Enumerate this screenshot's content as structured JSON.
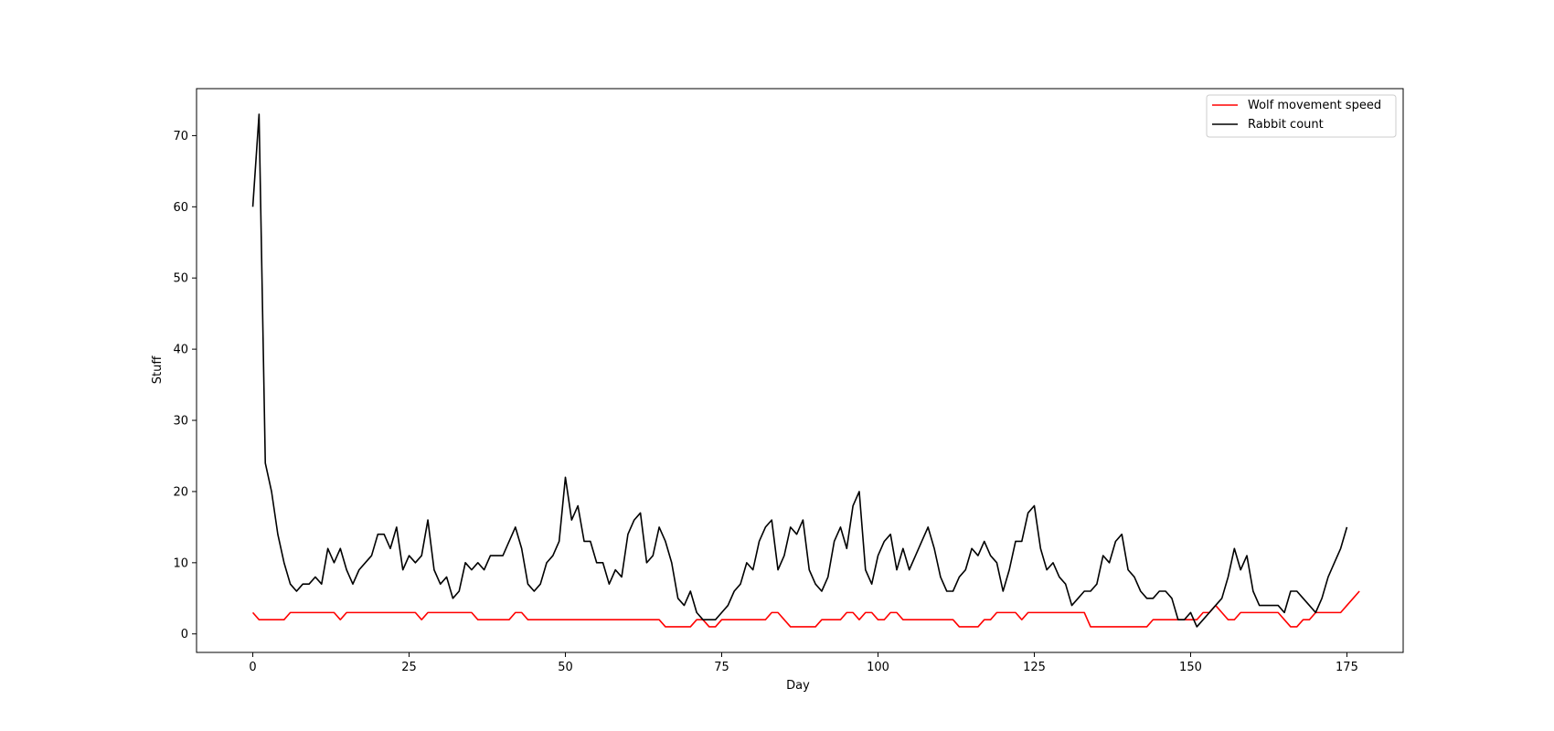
{
  "chart_data": {
    "type": "line",
    "title": "",
    "xlabel": "Day",
    "ylabel": "Stuff",
    "xlim": [
      -9,
      184
    ],
    "ylim": [
      -2.6,
      76.6
    ],
    "xticks": [
      "0",
      "25",
      "50",
      "75",
      "100",
      "125",
      "150",
      "175"
    ],
    "yticks": [
      "0",
      "10",
      "20",
      "30",
      "40",
      "50",
      "60",
      "70"
    ],
    "grid": false,
    "legend_position": "top-right",
    "series": [
      {
        "name": "Wolf movement speed",
        "color": "#ff0000",
        "values": [
          3,
          2,
          2,
          2,
          2,
          2,
          3,
          3,
          3,
          3,
          3,
          3,
          3,
          3,
          2,
          3,
          3,
          3,
          3,
          3,
          3,
          3,
          3,
          3,
          3,
          3,
          3,
          2,
          3,
          3,
          3,
          3,
          3,
          3,
          3,
          3,
          2,
          2,
          2,
          2,
          2,
          2,
          3,
          3,
          2,
          2,
          2,
          2,
          2,
          2,
          2,
          2,
          2,
          2,
          2,
          2,
          2,
          2,
          2,
          2,
          2,
          2,
          2,
          2,
          2,
          2,
          1,
          1,
          1,
          1,
          1,
          2,
          2,
          1,
          1,
          2,
          2,
          2,
          2,
          2,
          2,
          2,
          2,
          3,
          3,
          2,
          1,
          1,
          1,
          1,
          1,
          2,
          2,
          2,
          2,
          3,
          3,
          2,
          3,
          3,
          2,
          2,
          3,
          3,
          2,
          2,
          2,
          2,
          2,
          2,
          2,
          2,
          2,
          1,
          1,
          1,
          1,
          2,
          2,
          3,
          3,
          3,
          3,
          2,
          3,
          3,
          3,
          3,
          3,
          3,
          3,
          3,
          3,
          3,
          1,
          1,
          1,
          1,
          1,
          1,
          1,
          1,
          1,
          1,
          2,
          2,
          2,
          2,
          2,
          2,
          2,
          2,
          3,
          3,
          4,
          3,
          2,
          2,
          3,
          3,
          3,
          3,
          3,
          3,
          3,
          2,
          1,
          1,
          2,
          2,
          3,
          3,
          3,
          3,
          3,
          4,
          5,
          6
        ]
      },
      {
        "name": "Rabbit count",
        "color": "#000000",
        "values": [
          60,
          73,
          24,
          20,
          14,
          10,
          7,
          6,
          7,
          7,
          8,
          7,
          12,
          10,
          12,
          9,
          7,
          9,
          10,
          11,
          14,
          14,
          12,
          15,
          9,
          11,
          10,
          11,
          16,
          9,
          7,
          8,
          5,
          6,
          10,
          9,
          10,
          9,
          11,
          11,
          11,
          13,
          15,
          12,
          7,
          6,
          7,
          10,
          11,
          13,
          22,
          16,
          18,
          13,
          13,
          10,
          10,
          7,
          9,
          8,
          14,
          16,
          17,
          10,
          11,
          15,
          13,
          10,
          5,
          4,
          6,
          3,
          2,
          2,
          2,
          3,
          4,
          6,
          7,
          10,
          9,
          13,
          15,
          16,
          9,
          11,
          15,
          14,
          16,
          9,
          7,
          6,
          8,
          13,
          15,
          12,
          18,
          20,
          9,
          7,
          11,
          13,
          14,
          9,
          12,
          9,
          11,
          13,
          15,
          12,
          8,
          6,
          6,
          8,
          9,
          12,
          11,
          13,
          11,
          10,
          6,
          9,
          13,
          13,
          17,
          18,
          12,
          9,
          10,
          8,
          7,
          4,
          5,
          6,
          6,
          7,
          11,
          10,
          13,
          14,
          9,
          8,
          6,
          5,
          5,
          6,
          6,
          5,
          2,
          2,
          3,
          1,
          2,
          3,
          4,
          5,
          8,
          12,
          9,
          11,
          6,
          4,
          4,
          4,
          4,
          3,
          6,
          6,
          5,
          4,
          3,
          5,
          8,
          10,
          12,
          15
        ]
      }
    ]
  }
}
